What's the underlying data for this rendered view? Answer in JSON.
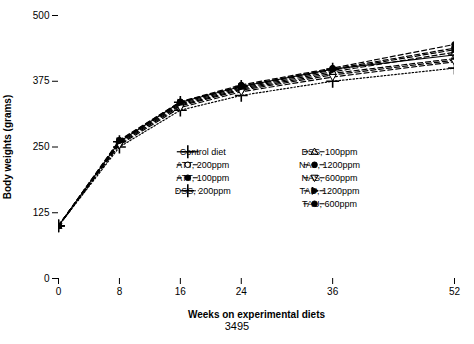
{
  "chart_data": {
    "type": "line",
    "x": [
      0,
      8,
      16,
      24,
      36,
      52
    ],
    "series": [
      {
        "name": "Control diet",
        "color": "#000000",
        "values": [
          100,
          260,
          335,
          365,
          398,
          425
        ],
        "line_style": "solid",
        "marker": "plus"
      },
      {
        "name": "ATT, 200ppm",
        "color": "#000000",
        "values": [
          100,
          258,
          330,
          360,
          390,
          418
        ],
        "line_style": "dashed",
        "marker": "circle-open"
      },
      {
        "name": "ATT, 100ppm",
        "color": "#000000",
        "values": [
          100,
          256,
          328,
          358,
          387,
          415
        ],
        "line_style": "dashed",
        "marker": "circle"
      },
      {
        "name": "DSS, 200ppm",
        "color": "#000000",
        "values": [
          100,
          250,
          320,
          348,
          375,
          400
        ],
        "line_style": "dotted",
        "marker": "plus"
      },
      {
        "name": "DSS, 100ppm",
        "color": "#000000",
        "values": [
          100,
          260,
          332,
          362,
          393,
          430
        ],
        "line_style": "dashed",
        "marker": "triangle-up-open"
      },
      {
        "name": "NAS, 1200ppm",
        "color": "#000000",
        "values": [
          100,
          263,
          336,
          368,
          400,
          445
        ],
        "line_style": "dashed",
        "marker": "circle"
      },
      {
        "name": "NAS, 600ppm",
        "color": "#000000",
        "values": [
          100,
          254,
          325,
          355,
          383,
          412
        ],
        "line_style": "dashed",
        "marker": "triangle-down-open"
      },
      {
        "name": "TAU, 1200ppm",
        "color": "#000000",
        "values": [
          100,
          261,
          334,
          364,
          396,
          435
        ],
        "line_style": "dashed",
        "marker": "triangle-right"
      },
      {
        "name": "TAU, 600ppm",
        "color": "#000000",
        "values": [
          100,
          262,
          336,
          366,
          398,
          438
        ],
        "line_style": "dashed",
        "marker": "circle"
      }
    ],
    "xlabel": "Weeks on experimental diets",
    "ylabel": "Body weights (grams)",
    "xlim": [
      0,
      52
    ],
    "ylim": [
      0,
      500
    ],
    "xticks": [
      0,
      8,
      16,
      24,
      36,
      52
    ],
    "yticks": [
      0,
      125,
      250,
      375,
      500
    ],
    "grid": false,
    "legend": "lower right",
    "annotations": [
      "3495"
    ]
  }
}
